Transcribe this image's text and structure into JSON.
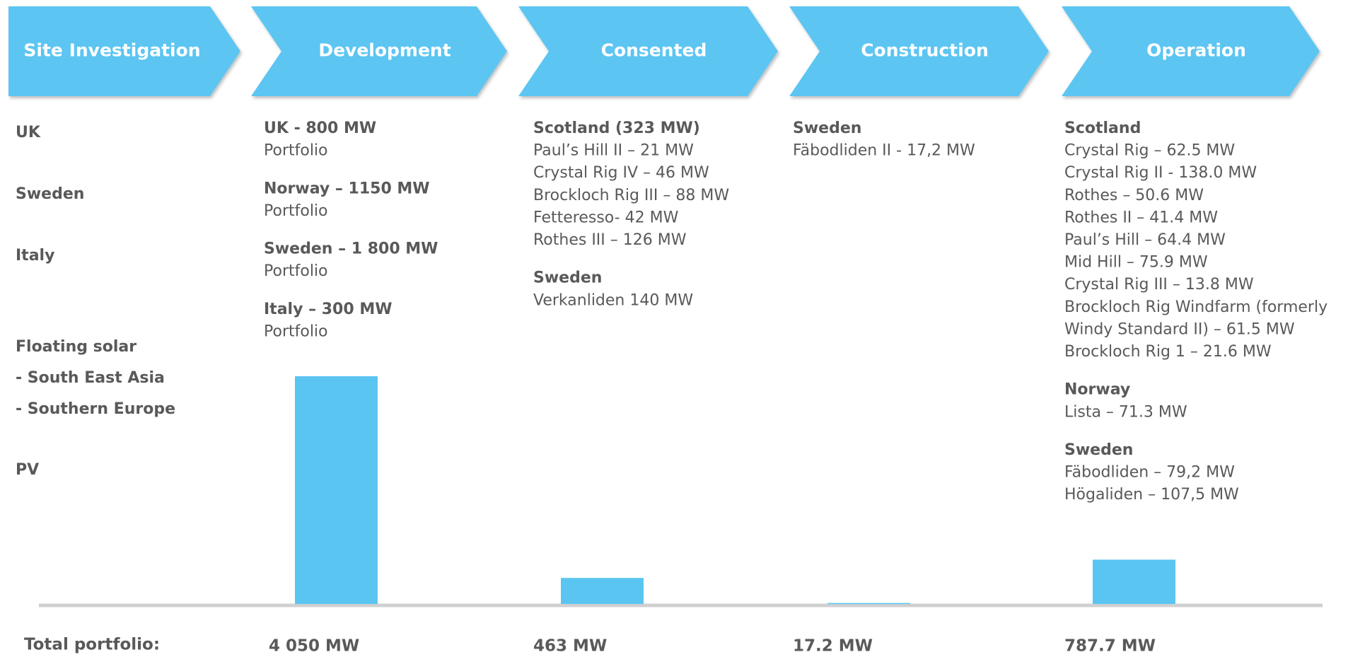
{
  "chart_data": {
    "type": "bar",
    "categories": [
      "Site Investigation",
      "Development",
      "Consented",
      "Construction",
      "Operation"
    ],
    "values": [
      null,
      4050,
      463,
      17.2,
      787.7
    ],
    "value_labels": [
      null,
      "4 050 MW",
      "463 MW",
      "17.2 MW",
      "787.7 MW"
    ],
    "total_label": "Total portfolio:",
    "color": "#5bc5f2",
    "ylim": [
      0,
      4050
    ]
  },
  "columns": [
    {
      "groups": [
        {
          "heading": "UK",
          "items": []
        },
        {
          "heading": "Sweden",
          "items": []
        },
        {
          "heading": "Italy",
          "items": []
        },
        {
          "heading": "Floating solar",
          "items": [
            " - South East Asia",
            " - Southern Europe"
          ],
          "items_bold": true
        },
        {
          "heading": "PV",
          "items": []
        }
      ]
    },
    {
      "groups": [
        {
          "heading": "UK - 800 MW",
          "items": [
            "Portfolio"
          ]
        },
        {
          "heading": "Norway – 1150 MW",
          "items": [
            "Portfolio"
          ]
        },
        {
          "heading": "Sweden – 1 800 MW",
          "items": [
            "Portfolio"
          ]
        },
        {
          "heading": "Italy – 300 MW",
          "items": [
            "Portfolio"
          ]
        }
      ]
    },
    {
      "groups": [
        {
          "heading": "Scotland (323 MW)",
          "items": [
            "Paul’s Hill II – 21 MW",
            "Crystal Rig IV – 46 MW",
            "Brockloch Rig III – 88 MW",
            "Fetteresso- 42 MW",
            "Rothes III – 126 MW"
          ]
        },
        {
          "heading": "Sweden",
          "items": [
            "Verkanliden 140 MW"
          ]
        }
      ]
    },
    {
      "groups": [
        {
          "heading": "Sweden",
          "items": [
            "Fäbodliden II - 17,2 MW"
          ]
        }
      ]
    },
    {
      "groups": [
        {
          "heading": "Scotland",
          "items": [
            "Crystal Rig – 62.5 MW",
            "Crystal Rig II  - 138.0 MW",
            "Rothes – 50.6 MW",
            "Rothes II – 41.4 MW",
            "Paul’s Hill – 64.4 MW",
            "Mid Hill – 75.9 MW",
            "Crystal Rig III – 13.8 MW",
            "Brockloch Rig Windfarm (formerly",
            "Windy Standard II) – 61.5 MW",
            "Brockloch Rig 1 – 21.6 MW"
          ]
        },
        {
          "heading": "Norway",
          "items": [
            "Lista – 71.3 MW"
          ]
        },
        {
          "heading": "Sweden",
          "items": [
            "Fäbodliden – 79,2 MW",
            "Högaliden – 107,5 MW"
          ]
        }
      ]
    }
  ]
}
